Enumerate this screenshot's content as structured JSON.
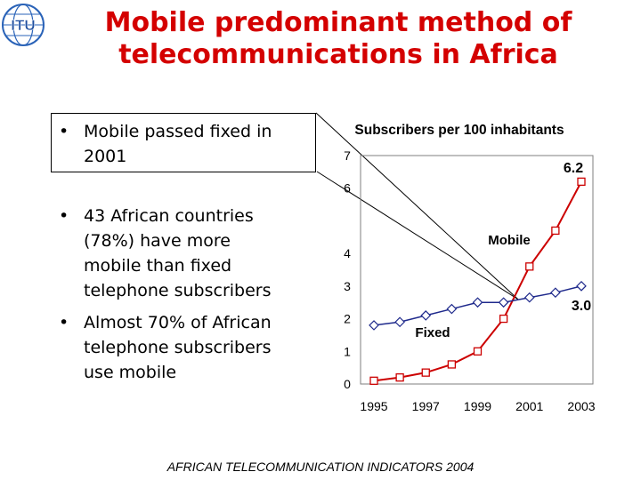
{
  "title": {
    "line1": "Mobile predominant method of",
    "line2": "telecommunications in Africa"
  },
  "logo": {
    "text": "ITU"
  },
  "bullets": [
    {
      "text": "Mobile passed fixed in 2001",
      "lines": [
        "Mobile passed fixed in",
        "2001"
      ]
    },
    {
      "text": "43 African countries (78%) have more mobile than fixed telephone subscribers",
      "lines": [
        "43 African countries",
        "(78%) have more",
        "mobile than fixed",
        "telephone subscribers"
      ]
    },
    {
      "text": "Almost 70% of African telephone subscribers use mobile",
      "lines": [
        "Almost 70% of African",
        "telephone subscribers",
        "use mobile"
      ]
    }
  ],
  "footer": "AFRICAN TELECOMMUNICATION INDICATORS 2004",
  "chart_data": {
    "type": "line",
    "title": "Subscribers per 100 inhabitants",
    "x": [
      1995,
      1996,
      1997,
      1998,
      1999,
      2000,
      2001,
      2002,
      2003
    ],
    "xticks": [
      "1995",
      "1997",
      "1999",
      "2001",
      "2003"
    ],
    "yticks": [
      "0",
      "1",
      "2",
      "3",
      "4",
      "6",
      "7"
    ],
    "ylim": [
      0,
      7
    ],
    "grid": false,
    "series": [
      {
        "name": "Mobile",
        "color": "#cc0000",
        "marker": "square",
        "values": [
          0.1,
          0.2,
          0.35,
          0.6,
          1.0,
          2.0,
          3.6,
          4.7,
          6.2
        ],
        "end_label": "6.2"
      },
      {
        "name": "Fixed",
        "color": "#1f2a8c",
        "marker": "diamond",
        "values": [
          1.8,
          1.9,
          2.1,
          2.3,
          2.5,
          2.5,
          2.65,
          2.8,
          3.0
        ],
        "end_label": "3.0"
      }
    ]
  }
}
